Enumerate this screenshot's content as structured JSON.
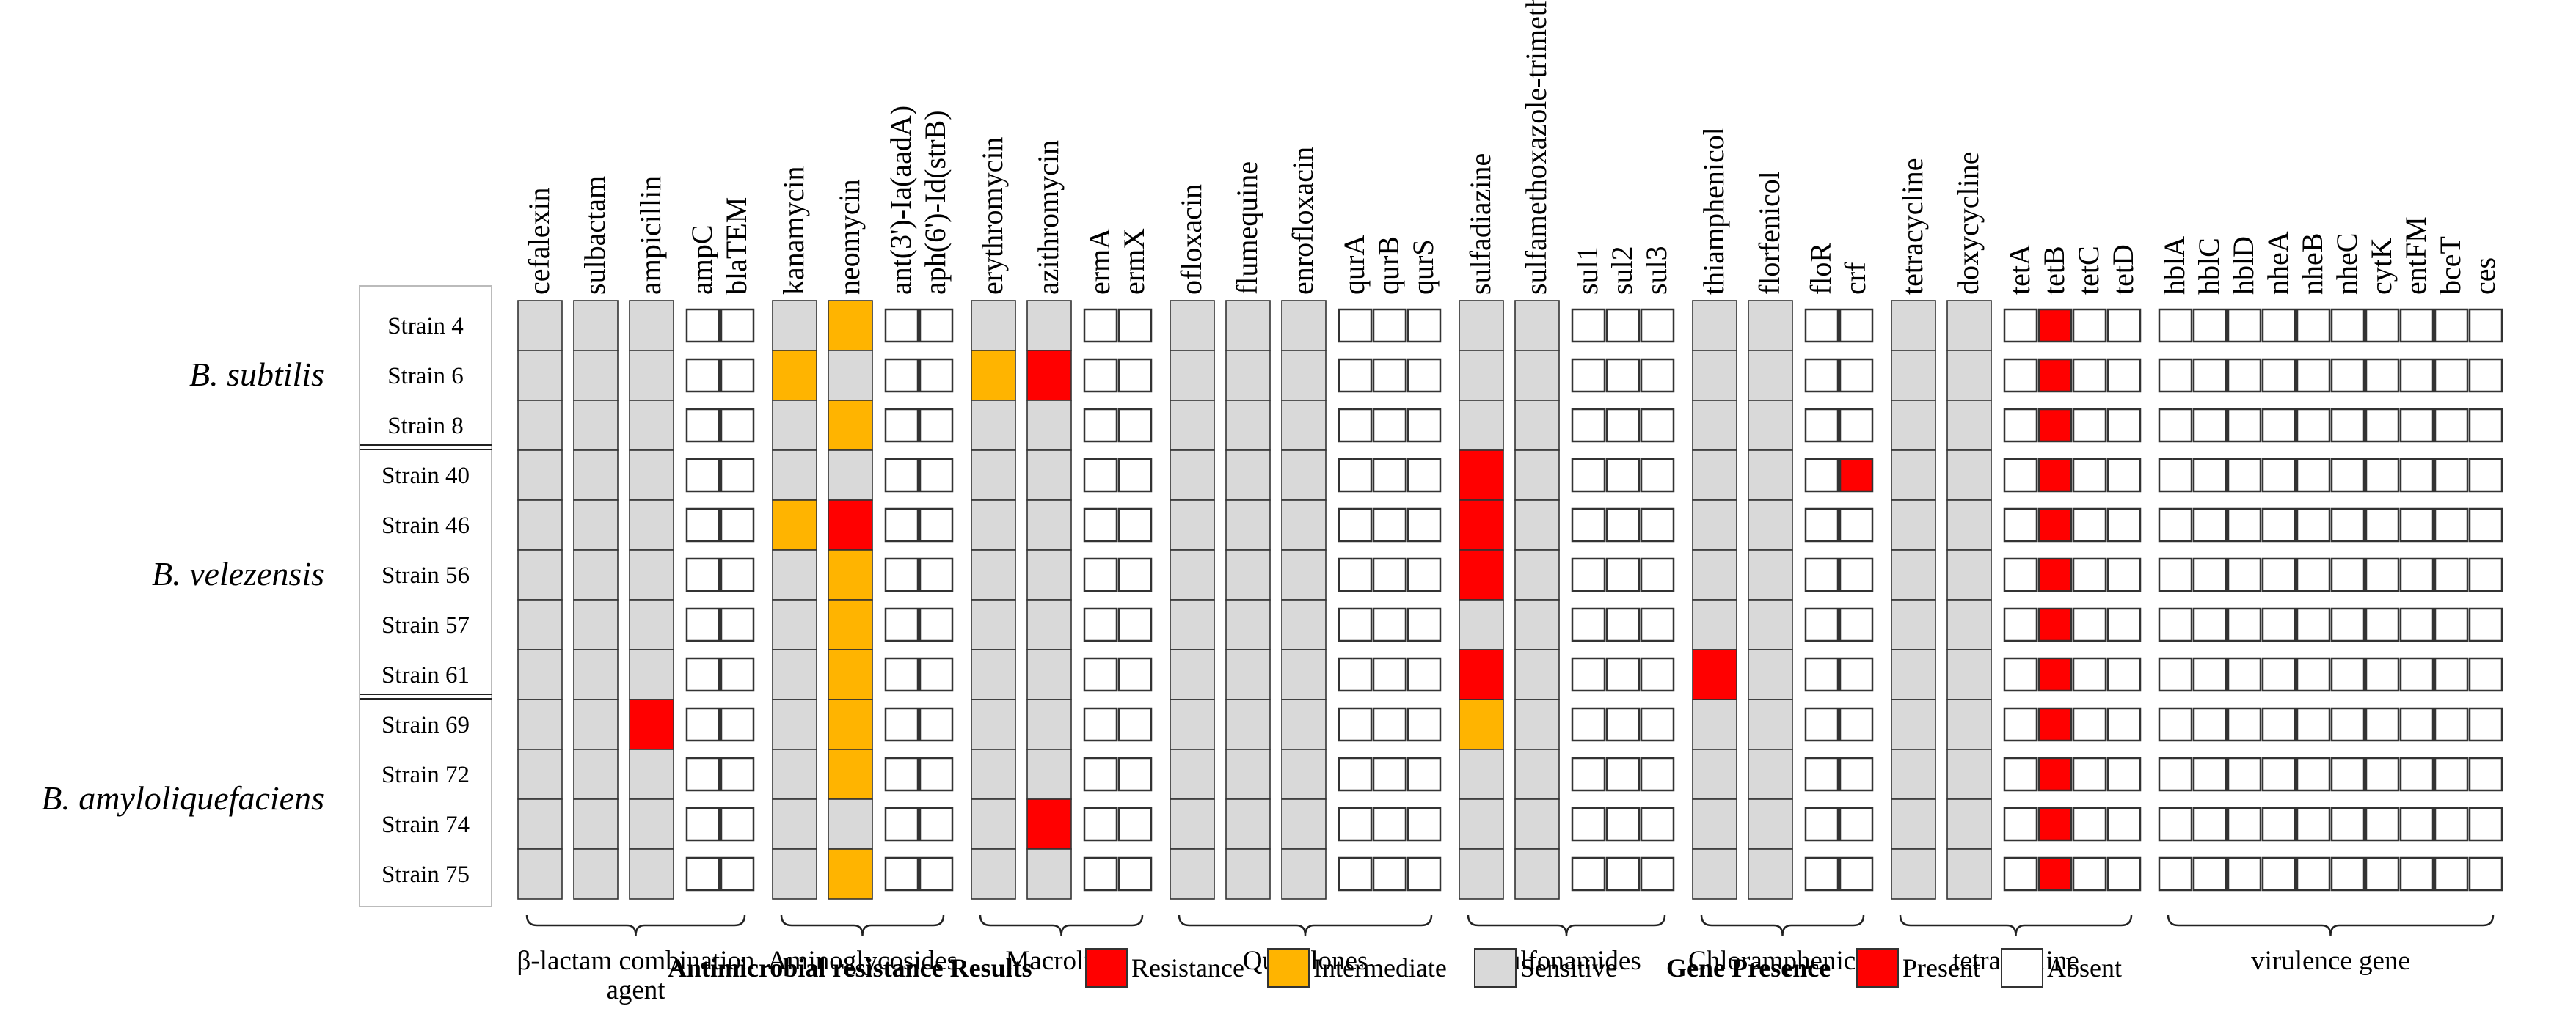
{
  "chart_data": {
    "type": "heatmap",
    "title": "",
    "species": [
      {
        "name": "B. subtilis",
        "strains": [
          "Strain 4",
          "Strain 6",
          "Strain 8"
        ]
      },
      {
        "name": "B. velezensis",
        "strains": [
          "Strain 40",
          "Strain 46",
          "Strain 56",
          "Strain 57",
          "Strain 61"
        ]
      },
      {
        "name": "B. amyloliquefaciens",
        "strains": [
          "Strain 69",
          "Strain 72",
          "Strain 74",
          "Strain 75"
        ]
      }
    ],
    "rows": [
      "Strain 4",
      "Strain 6",
      "Strain 8",
      "Strain 40",
      "Strain 46",
      "Strain 56",
      "Strain 57",
      "Strain 61",
      "Strain 69",
      "Strain 72",
      "Strain 74",
      "Strain 75"
    ],
    "groups": [
      {
        "label": "β-lactam combination agent",
        "columns": [
          {
            "name": "cefalexin",
            "type": "drug",
            "values": [
              "S",
              "S",
              "S",
              "S",
              "S",
              "S",
              "S",
              "S",
              "S",
              "S",
              "S",
              "S"
            ]
          },
          {
            "name": "sulbactam",
            "type": "drug",
            "values": [
              "S",
              "S",
              "S",
              "S",
              "S",
              "S",
              "S",
              "S",
              "S",
              "S",
              "S",
              "S"
            ]
          },
          {
            "name": "ampicillin",
            "type": "drug",
            "values": [
              "S",
              "S",
              "S",
              "S",
              "S",
              "S",
              "S",
              "S",
              "R",
              "S",
              "S",
              "S"
            ]
          },
          {
            "name": "ampC",
            "type": "gene",
            "values": [
              "A",
              "A",
              "A",
              "A",
              "A",
              "A",
              "A",
              "A",
              "A",
              "A",
              "A",
              "A"
            ]
          },
          {
            "name": "blaTEM",
            "type": "gene",
            "values": [
              "A",
              "A",
              "A",
              "A",
              "A",
              "A",
              "A",
              "A",
              "A",
              "A",
              "A",
              "A"
            ]
          }
        ]
      },
      {
        "label": "Aminoglycosides",
        "columns": [
          {
            "name": "kanamycin",
            "type": "drug",
            "values": [
              "S",
              "I",
              "S",
              "S",
              "I",
              "S",
              "S",
              "S",
              "S",
              "S",
              "S",
              "S"
            ]
          },
          {
            "name": "neomycin",
            "type": "drug",
            "values": [
              "I",
              "S",
              "I",
              "S",
              "R",
              "I",
              "I",
              "I",
              "I",
              "I",
              "S",
              "I"
            ]
          },
          {
            "name": "ant(3')-Ia(aadA)",
            "type": "gene",
            "values": [
              "A",
              "A",
              "A",
              "A",
              "A",
              "A",
              "A",
              "A",
              "A",
              "A",
              "A",
              "A"
            ]
          },
          {
            "name": "aph(6')-Id(strB)",
            "type": "gene",
            "values": [
              "A",
              "A",
              "A",
              "A",
              "A",
              "A",
              "A",
              "A",
              "A",
              "A",
              "A",
              "A"
            ]
          }
        ]
      },
      {
        "label": "Macrolide",
        "columns": [
          {
            "name": "erythromycin",
            "type": "drug",
            "values": [
              "S",
              "I",
              "S",
              "S",
              "S",
              "S",
              "S",
              "S",
              "S",
              "S",
              "S",
              "S"
            ]
          },
          {
            "name": "azithromycin",
            "type": "drug",
            "values": [
              "S",
              "R",
              "S",
              "S",
              "S",
              "S",
              "S",
              "S",
              "S",
              "S",
              "R",
              "S"
            ]
          },
          {
            "name": "ermA",
            "type": "gene",
            "values": [
              "A",
              "A",
              "A",
              "A",
              "A",
              "A",
              "A",
              "A",
              "A",
              "A",
              "A",
              "A"
            ]
          },
          {
            "name": "ermX",
            "type": "gene",
            "values": [
              "A",
              "A",
              "A",
              "A",
              "A",
              "A",
              "A",
              "A",
              "A",
              "A",
              "A",
              "A"
            ]
          }
        ]
      },
      {
        "label": "Quinolones",
        "columns": [
          {
            "name": "ofloxacin",
            "type": "drug",
            "values": [
              "S",
              "S",
              "S",
              "S",
              "S",
              "S",
              "S",
              "S",
              "S",
              "S",
              "S",
              "S"
            ]
          },
          {
            "name": "flumequine",
            "type": "drug",
            "values": [
              "S",
              "S",
              "S",
              "S",
              "S",
              "S",
              "S",
              "S",
              "S",
              "S",
              "S",
              "S"
            ]
          },
          {
            "name": "enrofloxacin",
            "type": "drug",
            "values": [
              "S",
              "S",
              "S",
              "S",
              "S",
              "S",
              "S",
              "S",
              "S",
              "S",
              "S",
              "S"
            ]
          },
          {
            "name": "qurA",
            "type": "gene",
            "values": [
              "A",
              "A",
              "A",
              "A",
              "A",
              "A",
              "A",
              "A",
              "A",
              "A",
              "A",
              "A"
            ]
          },
          {
            "name": "qurB",
            "type": "gene",
            "values": [
              "A",
              "A",
              "A",
              "A",
              "A",
              "A",
              "A",
              "A",
              "A",
              "A",
              "A",
              "A"
            ]
          },
          {
            "name": "qurS",
            "type": "gene",
            "values": [
              "A",
              "A",
              "A",
              "A",
              "A",
              "A",
              "A",
              "A",
              "A",
              "A",
              "A",
              "A"
            ]
          }
        ]
      },
      {
        "label": "Sulfonamides",
        "columns": [
          {
            "name": "sulfadiazine",
            "type": "drug",
            "values": [
              "S",
              "S",
              "S",
              "R",
              "R",
              "R",
              "S",
              "R",
              "I",
              "S",
              "S",
              "S"
            ]
          },
          {
            "name": "sulfamethoxazole-trimethoprim",
            "type": "drug",
            "values": [
              "S",
              "S",
              "S",
              "S",
              "S",
              "S",
              "S",
              "S",
              "S",
              "S",
              "S",
              "S"
            ]
          },
          {
            "name": "sul1",
            "type": "gene",
            "values": [
              "A",
              "A",
              "A",
              "A",
              "A",
              "A",
              "A",
              "A",
              "A",
              "A",
              "A",
              "A"
            ]
          },
          {
            "name": "sul2",
            "type": "gene",
            "values": [
              "A",
              "A",
              "A",
              "A",
              "A",
              "A",
              "A",
              "A",
              "A",
              "A",
              "A",
              "A"
            ]
          },
          {
            "name": "sul3",
            "type": "gene",
            "values": [
              "A",
              "A",
              "A",
              "A",
              "A",
              "A",
              "A",
              "A",
              "A",
              "A",
              "A",
              "A"
            ]
          }
        ]
      },
      {
        "label": "Chloramphenicol",
        "columns": [
          {
            "name": "thiamphenicol",
            "type": "drug",
            "values": [
              "S",
              "S",
              "S",
              "S",
              "S",
              "S",
              "S",
              "R",
              "S",
              "S",
              "S",
              "S"
            ]
          },
          {
            "name": "florfenicol",
            "type": "drug",
            "values": [
              "S",
              "S",
              "S",
              "S",
              "S",
              "S",
              "S",
              "S",
              "S",
              "S",
              "S",
              "S"
            ]
          },
          {
            "name": "floR",
            "type": "gene",
            "values": [
              "A",
              "A",
              "A",
              "A",
              "A",
              "A",
              "A",
              "A",
              "A",
              "A",
              "A",
              "A"
            ]
          },
          {
            "name": "crf",
            "type": "gene",
            "values": [
              "A",
              "A",
              "A",
              "P",
              "A",
              "A",
              "A",
              "A",
              "A",
              "A",
              "A",
              "A"
            ]
          }
        ]
      },
      {
        "label": "tetracycline",
        "columns": [
          {
            "name": "tetracycline",
            "type": "drug",
            "values": [
              "S",
              "S",
              "S",
              "S",
              "S",
              "S",
              "S",
              "S",
              "S",
              "S",
              "S",
              "S"
            ]
          },
          {
            "name": "doxycycline",
            "type": "drug",
            "values": [
              "S",
              "S",
              "S",
              "S",
              "S",
              "S",
              "S",
              "S",
              "S",
              "S",
              "S",
              "S"
            ]
          },
          {
            "name": "tetA",
            "type": "gene",
            "values": [
              "A",
              "A",
              "A",
              "A",
              "A",
              "A",
              "A",
              "A",
              "A",
              "A",
              "A",
              "A"
            ]
          },
          {
            "name": "tetB",
            "type": "gene",
            "values": [
              "P",
              "P",
              "P",
              "P",
              "P",
              "P",
              "P",
              "P",
              "P",
              "P",
              "P",
              "P"
            ]
          },
          {
            "name": "tetC",
            "type": "gene",
            "values": [
              "A",
              "A",
              "A",
              "A",
              "A",
              "A",
              "A",
              "A",
              "A",
              "A",
              "A",
              "A"
            ]
          },
          {
            "name": "tetD",
            "type": "gene",
            "values": [
              "A",
              "A",
              "A",
              "A",
              "A",
              "A",
              "A",
              "A",
              "A",
              "A",
              "A",
              "A"
            ]
          }
        ]
      },
      {
        "label": "virulence gene",
        "columns": [
          {
            "name": "hblA",
            "type": "gene",
            "values": [
              "A",
              "A",
              "A",
              "A",
              "A",
              "A",
              "A",
              "A",
              "A",
              "A",
              "A",
              "A"
            ]
          },
          {
            "name": "hblC",
            "type": "gene",
            "values": [
              "A",
              "A",
              "A",
              "A",
              "A",
              "A",
              "A",
              "A",
              "A",
              "A",
              "A",
              "A"
            ]
          },
          {
            "name": "hblD",
            "type": "gene",
            "values": [
              "A",
              "A",
              "A",
              "A",
              "A",
              "A",
              "A",
              "A",
              "A",
              "A",
              "A",
              "A"
            ]
          },
          {
            "name": "nheA",
            "type": "gene",
            "values": [
              "A",
              "A",
              "A",
              "A",
              "A",
              "A",
              "A",
              "A",
              "A",
              "A",
              "A",
              "A"
            ]
          },
          {
            "name": "nheB",
            "type": "gene",
            "values": [
              "A",
              "A",
              "A",
              "A",
              "A",
              "A",
              "A",
              "A",
              "A",
              "A",
              "A",
              "A"
            ]
          },
          {
            "name": "nheC",
            "type": "gene",
            "values": [
              "A",
              "A",
              "A",
              "A",
              "A",
              "A",
              "A",
              "A",
              "A",
              "A",
              "A",
              "A"
            ]
          },
          {
            "name": "cytK",
            "type": "gene",
            "values": [
              "A",
              "A",
              "A",
              "A",
              "A",
              "A",
              "A",
              "A",
              "A",
              "A",
              "A",
              "A"
            ]
          },
          {
            "name": "entFM",
            "type": "gene",
            "values": [
              "A",
              "A",
              "A",
              "A",
              "A",
              "A",
              "A",
              "A",
              "A",
              "A",
              "A",
              "A"
            ]
          },
          {
            "name": "bceT",
            "type": "gene",
            "values": [
              "A",
              "A",
              "A",
              "A",
              "A",
              "A",
              "A",
              "A",
              "A",
              "A",
              "A",
              "A"
            ]
          },
          {
            "name": "ces",
            "type": "gene",
            "values": [
              "A",
              "A",
              "A",
              "A",
              "A",
              "A",
              "A",
              "A",
              "A",
              "A",
              "A",
              "A"
            ]
          }
        ]
      }
    ],
    "legend": {
      "resistance": {
        "title": "Antimicrobial resistance Results",
        "items": [
          {
            "key": "R",
            "label": "Resistance"
          },
          {
            "key": "I",
            "label": "Intermediate"
          },
          {
            "key": "S",
            "label": "Sensitive"
          }
        ]
      },
      "gene": {
        "title": "Gene Presence",
        "items": [
          {
            "key": "P",
            "label": "Present"
          },
          {
            "key": "A",
            "label": "Absent"
          }
        ]
      }
    },
    "colors": {
      "R": "#ff0000",
      "I": "#ffb400",
      "S": "#d9d9d9",
      "P": "#ff0000",
      "A": "#ffffff"
    }
  }
}
